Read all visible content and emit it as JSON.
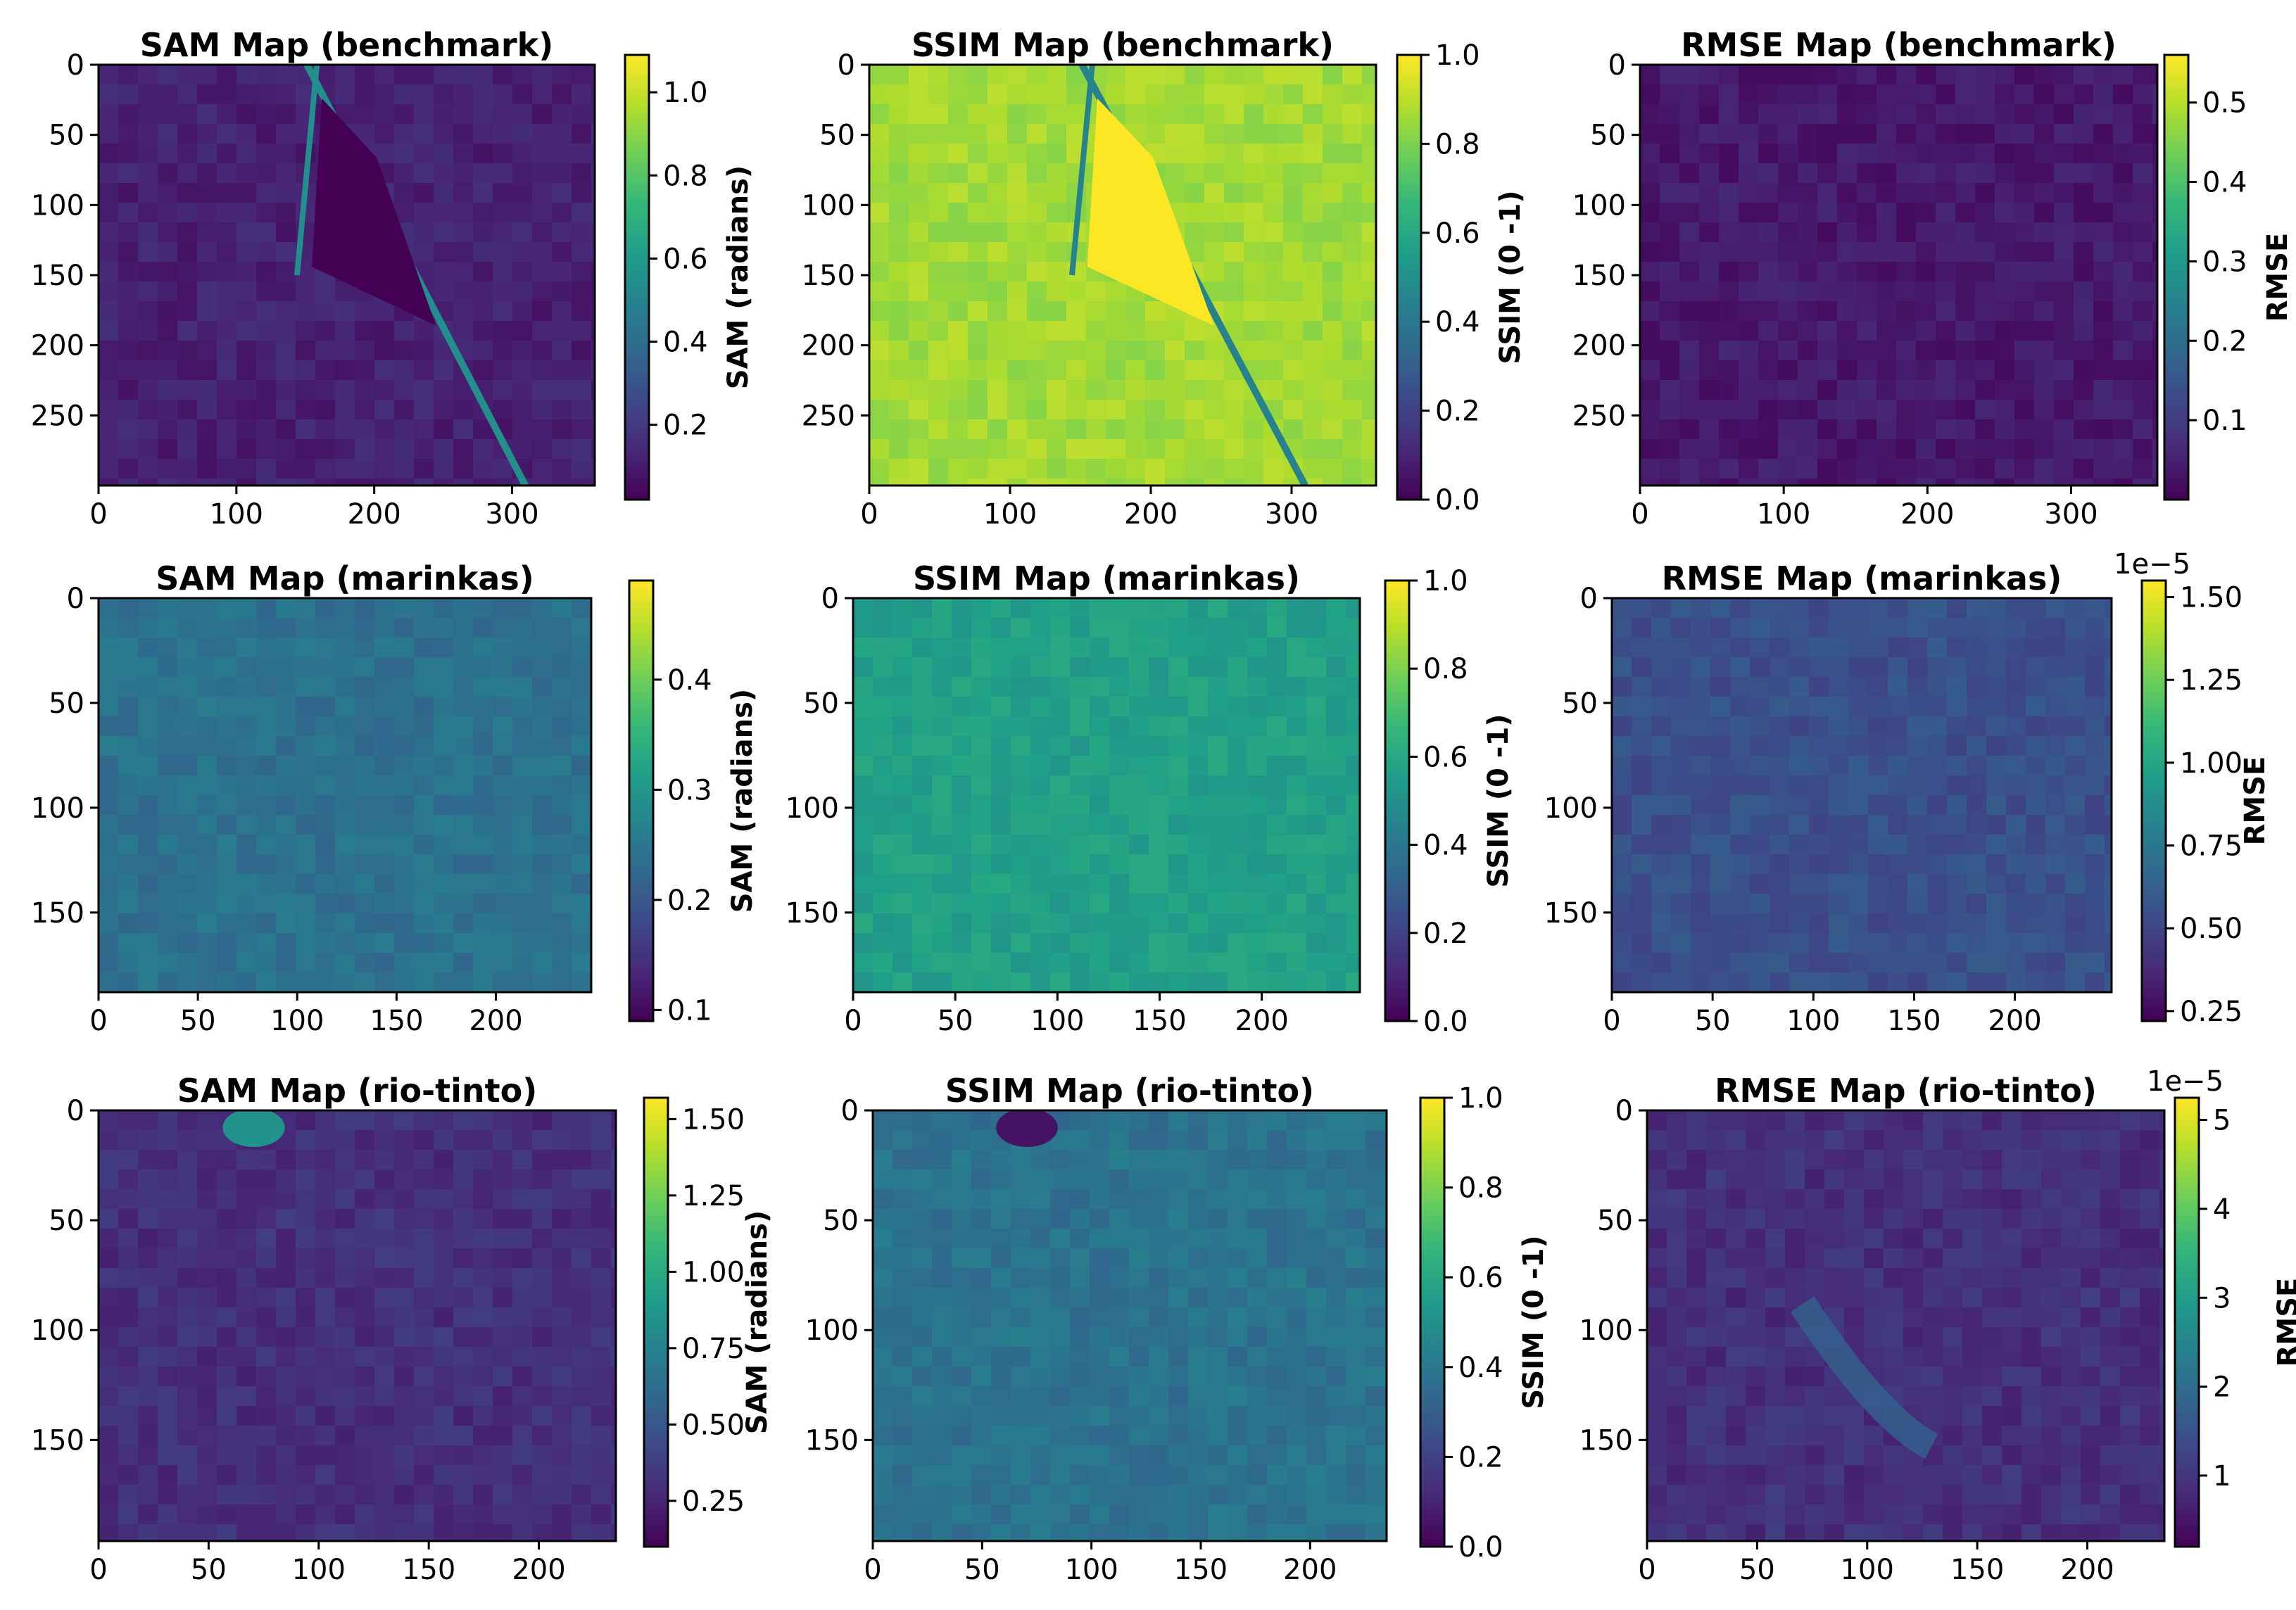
{
  "colormap": {
    "name": "viridis",
    "stops": [
      "#440154",
      "#482878",
      "#3e4989",
      "#31688e",
      "#26828e",
      "#1f9e89",
      "#35b779",
      "#6ece58",
      "#b5de2b",
      "#fde725"
    ]
  },
  "chart_data": [
    {
      "type": "heatmap",
      "title": "SAM Map (benchmark)",
      "colorbar_label": "SAM (radians)",
      "xlim": [
        0,
        360
      ],
      "ylim": [
        300,
        0
      ],
      "x_ticks": [
        "0",
        "100",
        "200",
        "300"
      ],
      "x_tick_values": [
        0,
        100,
        200,
        300
      ],
      "y_ticks": [
        "0",
        "50",
        "100",
        "150",
        "200",
        "250"
      ],
      "y_tick_values": [
        0,
        50,
        100,
        150,
        200,
        250
      ],
      "clim": [
        0.02,
        1.09
      ],
      "colorbar_ticks": [
        "0.2",
        "0.4",
        "0.6",
        "0.8",
        "1.0"
      ],
      "colorbar_tick_values": [
        0.2,
        0.4,
        0.6,
        0.8,
        1.0
      ],
      "colorbar_offset": "",
      "typical_level": 0.12,
      "features": [
        {
          "kind": "diagonal_channel",
          "value": 0.55
        },
        {
          "kind": "dark_patch",
          "value": 0.02
        }
      ]
    },
    {
      "type": "heatmap",
      "title": "SSIM Map (benchmark)",
      "colorbar_label": "SSIM (0 -1)",
      "xlim": [
        0,
        360
      ],
      "ylim": [
        300,
        0
      ],
      "x_ticks": [
        "0",
        "100",
        "200",
        "300"
      ],
      "x_tick_values": [
        0,
        100,
        200,
        300
      ],
      "y_ticks": [
        "0",
        "50",
        "100",
        "150",
        "200",
        "250"
      ],
      "y_tick_values": [
        0,
        50,
        100,
        150,
        200,
        250
      ],
      "clim": [
        0.0,
        1.0
      ],
      "colorbar_ticks": [
        "0.0",
        "0.2",
        "0.4",
        "0.6",
        "0.8",
        "1.0"
      ],
      "colorbar_tick_values": [
        0.0,
        0.2,
        0.4,
        0.6,
        0.8,
        1.0
      ],
      "colorbar_offset": "",
      "typical_level": 0.86,
      "features": [
        {
          "kind": "diagonal_channel",
          "value": 0.45
        },
        {
          "kind": "bright_patch",
          "value": 1.0
        }
      ]
    },
    {
      "type": "heatmap",
      "title": "RMSE Map (benchmark)",
      "colorbar_label": "RMSE",
      "xlim": [
        0,
        360
      ],
      "ylim": [
        300,
        0
      ],
      "x_ticks": [
        "0",
        "100",
        "200",
        "300"
      ],
      "x_tick_values": [
        0,
        100,
        200,
        300
      ],
      "y_ticks": [
        "0",
        "50",
        "100",
        "150",
        "200",
        "250"
      ],
      "y_tick_values": [
        0,
        50,
        100,
        150,
        200,
        250
      ],
      "clim": [
        0.0,
        0.56
      ],
      "colorbar_ticks": [
        "0.1",
        "0.2",
        "0.3",
        "0.4",
        "0.5"
      ],
      "colorbar_tick_values": [
        0.1,
        0.2,
        0.3,
        0.4,
        0.5
      ],
      "colorbar_offset": "",
      "typical_level": 0.04,
      "features": []
    },
    {
      "type": "heatmap",
      "title": "SAM Map (marinkas)",
      "colorbar_label": "SAM (radians)",
      "xlim": [
        0,
        248
      ],
      "ylim": [
        188,
        0
      ],
      "x_ticks": [
        "0",
        "50",
        "100",
        "150",
        "200"
      ],
      "x_tick_values": [
        0,
        50,
        100,
        150,
        200
      ],
      "y_ticks": [
        "0",
        "50",
        "100",
        "150"
      ],
      "y_tick_values": [
        0,
        50,
        100,
        150
      ],
      "clim": [
        0.09,
        0.49
      ],
      "colorbar_ticks": [
        "0.1",
        "0.2",
        "0.3",
        "0.4"
      ],
      "colorbar_tick_values": [
        0.1,
        0.2,
        0.3,
        0.4
      ],
      "colorbar_offset": "",
      "typical_level": 0.24,
      "features": []
    },
    {
      "type": "heatmap",
      "title": "SSIM Map (marinkas)",
      "colorbar_label": "SSIM (0 -1)",
      "xlim": [
        0,
        248
      ],
      "ylim": [
        188,
        0
      ],
      "x_ticks": [
        "0",
        "50",
        "100",
        "150",
        "200"
      ],
      "x_tick_values": [
        0,
        50,
        100,
        150,
        200
      ],
      "y_ticks": [
        "0",
        "50",
        "100",
        "150"
      ],
      "y_tick_values": [
        0,
        50,
        100,
        150
      ],
      "clim": [
        0.0,
        1.0
      ],
      "colorbar_ticks": [
        "0.0",
        "0.2",
        "0.4",
        "0.6",
        "0.8",
        "1.0"
      ],
      "colorbar_tick_values": [
        0.0,
        0.2,
        0.4,
        0.6,
        0.8,
        1.0
      ],
      "colorbar_offset": "",
      "typical_level": 0.56,
      "features": []
    },
    {
      "type": "heatmap",
      "title": "RMSE Map (marinkas)",
      "colorbar_label": "RMSE",
      "xlim": [
        0,
        248
      ],
      "ylim": [
        188,
        0
      ],
      "x_ticks": [
        "0",
        "50",
        "100",
        "150",
        "200"
      ],
      "x_tick_values": [
        0,
        50,
        100,
        150,
        200
      ],
      "y_ticks": [
        "0",
        "50",
        "100",
        "150"
      ],
      "y_tick_values": [
        0,
        50,
        100,
        150
      ],
      "clim": [
        0.22,
        1.55
      ],
      "colorbar_ticks": [
        "0.25",
        "0.50",
        "0.75",
        "1.00",
        "1.25",
        "1.50"
      ],
      "colorbar_tick_values": [
        0.25,
        0.5,
        0.75,
        1.0,
        1.25,
        1.5
      ],
      "colorbar_offset": "1e−5",
      "typical_level": 0.55,
      "features": []
    },
    {
      "type": "heatmap",
      "title": "SAM Map (rio-tinto)",
      "colorbar_label": "SAM (radians)",
      "xlim": [
        0,
        235
      ],
      "ylim": [
        196,
        0
      ],
      "x_ticks": [
        "0",
        "50",
        "100",
        "150",
        "200"
      ],
      "x_tick_values": [
        0,
        50,
        100,
        150,
        200
      ],
      "y_ticks": [
        "0",
        "50",
        "100",
        "150"
      ],
      "y_tick_values": [
        0,
        50,
        100,
        150
      ],
      "clim": [
        0.1,
        1.57
      ],
      "colorbar_ticks": [
        "0.25",
        "0.50",
        "0.75",
        "1.00",
        "1.25",
        "1.50"
      ],
      "colorbar_tick_values": [
        0.25,
        0.5,
        0.75,
        1.0,
        1.25,
        1.5
      ],
      "colorbar_offset": "",
      "typical_level": 0.3,
      "features": [
        {
          "kind": "bright_blob",
          "value": 0.85
        }
      ]
    },
    {
      "type": "heatmap",
      "title": "SSIM Map (rio-tinto)",
      "colorbar_label": "SSIM (0 -1)",
      "xlim": [
        0,
        235
      ],
      "ylim": [
        196,
        0
      ],
      "x_ticks": [
        "0",
        "50",
        "100",
        "150",
        "200"
      ],
      "x_tick_values": [
        0,
        50,
        100,
        150,
        200
      ],
      "y_ticks": [
        "0",
        "50",
        "100",
        "150"
      ],
      "y_tick_values": [
        0,
        50,
        100,
        150
      ],
      "clim": [
        0.0,
        1.0
      ],
      "colorbar_ticks": [
        "0.0",
        "0.2",
        "0.4",
        "0.6",
        "0.8",
        "1.0"
      ],
      "colorbar_tick_values": [
        0.0,
        0.2,
        0.4,
        0.6,
        0.8,
        1.0
      ],
      "colorbar_offset": "",
      "typical_level": 0.38,
      "features": [
        {
          "kind": "dark_blob",
          "value": 0.05
        }
      ]
    },
    {
      "type": "heatmap",
      "title": "RMSE Map (rio-tinto)",
      "colorbar_label": "RMSE",
      "xlim": [
        0,
        235
      ],
      "ylim": [
        196,
        0
      ],
      "x_ticks": [
        "0",
        "50",
        "100",
        "150",
        "200"
      ],
      "x_tick_values": [
        0,
        50,
        100,
        150,
        200
      ],
      "y_ticks": [
        "0",
        "50",
        "100",
        "150"
      ],
      "y_tick_values": [
        0,
        50,
        100,
        150
      ],
      "clim": [
        0.2,
        5.25
      ],
      "colorbar_ticks": [
        "1",
        "2",
        "3",
        "4",
        "5"
      ],
      "colorbar_tick_values": [
        1,
        2,
        3,
        4,
        5
      ],
      "colorbar_offset": "1e−5",
      "typical_level": 0.9,
      "features": [
        {
          "kind": "bright_band",
          "value": 1.8
        }
      ]
    }
  ]
}
